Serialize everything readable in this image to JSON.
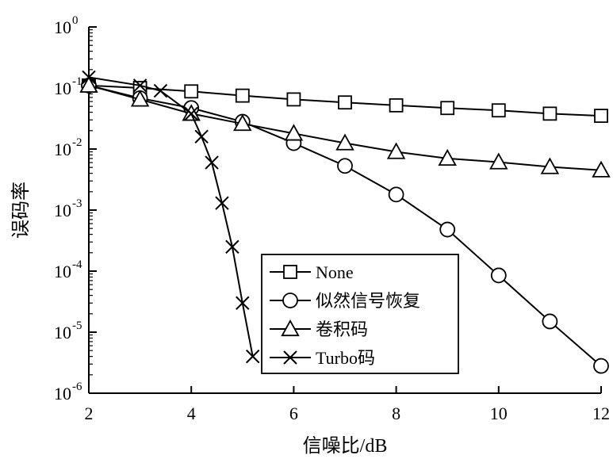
{
  "chart_data": {
    "type": "line",
    "xlabel": "信噪比/dB",
    "ylabel": "误码率",
    "x_ticks": [
      "2",
      "4",
      "6",
      "8",
      "10",
      "12"
    ],
    "y_ticks": [
      {
        "base": "10",
        "exp": "-6"
      },
      {
        "base": "10",
        "exp": "-5"
      },
      {
        "base": "10",
        "exp": "-4"
      },
      {
        "base": "10",
        "exp": "-3"
      },
      {
        "base": "10",
        "exp": "-2"
      },
      {
        "base": "10",
        "exp": "-1"
      },
      {
        "base": "10",
        "exp": "0"
      }
    ],
    "xlim": [
      2,
      12
    ],
    "ylim": [
      1e-06,
      1
    ],
    "yscale": "log",
    "grid": false,
    "legend_position": "lower-center",
    "series": [
      {
        "name": "None",
        "marker": "square",
        "x": [
          2,
          3,
          4,
          5,
          6,
          7,
          8,
          9,
          10,
          11,
          12
        ],
        "y": [
          0.11,
          0.1,
          0.088,
          0.075,
          0.065,
          0.058,
          0.052,
          0.047,
          0.043,
          0.038,
          0.035
        ]
      },
      {
        "name": "似然信号恢复",
        "marker": "circle",
        "x": [
          2,
          3,
          4,
          5,
          6,
          7,
          8,
          9,
          10,
          11,
          12
        ],
        "y": [
          0.11,
          0.068,
          0.047,
          0.028,
          0.0125,
          0.0053,
          0.0018,
          0.00048,
          8.5e-05,
          1.5e-05,
          2.8e-06
        ]
      },
      {
        "name": "卷积码",
        "marker": "triangle",
        "x": [
          2,
          3,
          4,
          5,
          6,
          7,
          8,
          9,
          10,
          11,
          12
        ],
        "y": [
          0.11,
          0.065,
          0.038,
          0.026,
          0.018,
          0.0125,
          0.009,
          0.007,
          0.0061,
          0.0051,
          0.0045
        ]
      },
      {
        "name": "Turbo码",
        "marker": "x",
        "x": [
          2,
          3,
          3.4,
          4,
          4.2,
          4.4,
          4.6,
          4.8,
          5,
          5.2
        ],
        "y": [
          0.15,
          0.11,
          0.09,
          0.038,
          0.016,
          0.006,
          0.0013,
          0.00025,
          3e-05,
          4e-06
        ]
      }
    ]
  }
}
